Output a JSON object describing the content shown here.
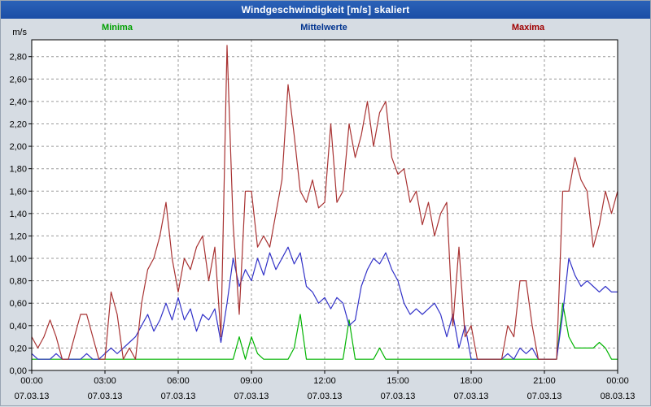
{
  "window": {
    "title": "Windgeschwindigkeit [m/s] skaliert"
  },
  "colors": {
    "title_bar_bg": "#1b4ea6",
    "title_text": "#ffffff",
    "page_bg": "#d6dce3",
    "plot_bg": "#ffffff",
    "grid": "#9a9a9a",
    "axis": "#000000"
  },
  "chart_data": {
    "type": "line",
    "title": "Windgeschwindigkeit [m/s] skaliert",
    "y_unit": "m/s",
    "ylim": [
      0,
      2.95
    ],
    "y_step": 0.2,
    "grid": "dashed",
    "legend_position": "top",
    "y_ticks": [
      "0,00",
      "0,20",
      "0,40",
      "0,60",
      "0,80",
      "1,00",
      "1,20",
      "1,40",
      "1,60",
      "1,80",
      "2,00",
      "2,20",
      "2,40",
      "2,60",
      "2,80"
    ],
    "x_hours_range": [
      0,
      24
    ],
    "x_ticks": [
      "00:00",
      "03:00",
      "06:00",
      "09:00",
      "12:00",
      "15:00",
      "18:00",
      "21:00",
      "00:00"
    ],
    "x_dates": [
      "07.03.13",
      "07.03.13",
      "07.03.13",
      "07.03.13",
      "07.03.13",
      "07.03.13",
      "07.03.13",
      "07.03.13",
      "08.03.13"
    ],
    "sample_interval_hours": 0.25,
    "series": [
      {
        "name": "Minima",
        "color": "#00b400",
        "label_color": "#00a000",
        "values": [
          0.1,
          0.1,
          0.1,
          0.1,
          0.1,
          0.1,
          0.1,
          0.1,
          0.1,
          0.1,
          0.1,
          0.1,
          0.1,
          0.1,
          0.1,
          0.1,
          0.1,
          0.1,
          0.1,
          0.1,
          0.1,
          0.1,
          0.1,
          0.1,
          0.1,
          0.1,
          0.1,
          0.1,
          0.1,
          0.1,
          0.1,
          0.1,
          0.1,
          0.1,
          0.3,
          0.1,
          0.3,
          0.15,
          0.1,
          0.1,
          0.1,
          0.1,
          0.1,
          0.2,
          0.5,
          0.1,
          0.1,
          0.1,
          0.1,
          0.1,
          0.1,
          0.1,
          0.45,
          0.1,
          0.1,
          0.1,
          0.1,
          0.2,
          0.1,
          0.1,
          0.1,
          0.1,
          0.1,
          0.1,
          0.1,
          0.1,
          0.1,
          0.1,
          0.1,
          0.1,
          0.1,
          0.1,
          0.1,
          0.1,
          0.1,
          0.1,
          0.1,
          0.1,
          0.1,
          0.1,
          0.1,
          0.1,
          0.1,
          0.1,
          0.1,
          0.1,
          0.1,
          0.6,
          0.3,
          0.2,
          0.2,
          0.2,
          0.2,
          0.25,
          0.2,
          0.1,
          0.1
        ]
      },
      {
        "name": "Mittelwerte",
        "color": "#3232c8",
        "label_color": "#00338f",
        "values": [
          0.15,
          0.1,
          0.1,
          0.1,
          0.15,
          0.1,
          0.1,
          0.1,
          0.1,
          0.15,
          0.1,
          0.1,
          0.15,
          0.2,
          0.15,
          0.2,
          0.25,
          0.3,
          0.4,
          0.5,
          0.35,
          0.45,
          0.6,
          0.45,
          0.65,
          0.45,
          0.55,
          0.35,
          0.5,
          0.45,
          0.55,
          0.25,
          0.6,
          1.0,
          0.75,
          0.9,
          0.8,
          1.0,
          0.85,
          1.05,
          0.9,
          1.0,
          1.1,
          0.95,
          1.05,
          0.75,
          0.7,
          0.6,
          0.65,
          0.55,
          0.65,
          0.6,
          0.4,
          0.45,
          0.75,
          0.9,
          1.0,
          0.95,
          1.05,
          0.9,
          0.8,
          0.6,
          0.5,
          0.55,
          0.5,
          0.55,
          0.6,
          0.5,
          0.3,
          0.5,
          0.2,
          0.4,
          0.1,
          0.1,
          0.1,
          0.1,
          0.1,
          0.1,
          0.15,
          0.1,
          0.2,
          0.15,
          0.2,
          0.1,
          0.1,
          0.1,
          0.1,
          0.5,
          1.0,
          0.85,
          0.75,
          0.8,
          0.75,
          0.7,
          0.75,
          0.7,
          0.7
        ]
      },
      {
        "name": "Maxima",
        "color": "#a83232",
        "label_color": "#a00000",
        "values": [
          0.3,
          0.2,
          0.3,
          0.45,
          0.3,
          0.1,
          0.1,
          0.3,
          0.5,
          0.5,
          0.3,
          0.1,
          0.1,
          0.7,
          0.5,
          0.1,
          0.2,
          0.1,
          0.6,
          0.9,
          1.0,
          1.2,
          1.5,
          1.0,
          0.7,
          1.0,
          0.9,
          1.1,
          1.2,
          0.8,
          1.1,
          0.3,
          2.9,
          1.3,
          0.5,
          1.6,
          1.6,
          1.1,
          1.2,
          1.1,
          1.4,
          1.7,
          2.55,
          2.1,
          1.6,
          1.5,
          1.7,
          1.45,
          1.5,
          2.2,
          1.5,
          1.6,
          2.2,
          1.9,
          2.1,
          2.4,
          2.0,
          2.3,
          2.4,
          1.9,
          1.75,
          1.8,
          1.5,
          1.6,
          1.3,
          1.5,
          1.2,
          1.4,
          1.5,
          0.4,
          1.1,
          0.3,
          0.4,
          0.1,
          0.1,
          0.1,
          0.1,
          0.1,
          0.4,
          0.3,
          0.8,
          0.8,
          0.4,
          0.1,
          0.1,
          0.1,
          0.1,
          1.6,
          1.6,
          1.9,
          1.7,
          1.6,
          1.1,
          1.3,
          1.6,
          1.4,
          1.6
        ]
      }
    ]
  }
}
